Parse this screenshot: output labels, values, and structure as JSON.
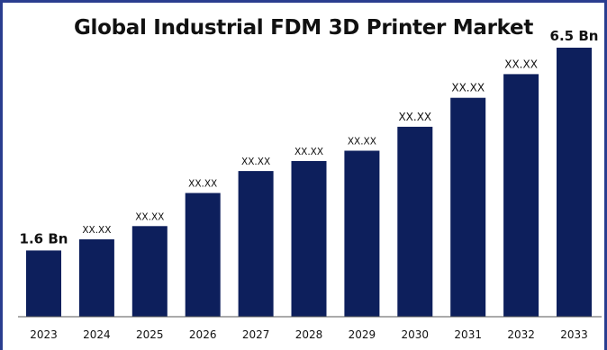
{
  "chart_data": {
    "type": "bar",
    "title": "Global Industrial FDM 3D Printer Market",
    "categories": [
      "2023",
      "2024",
      "2025",
      "2026",
      "2027",
      "2028",
      "2029",
      "2030",
      "2031",
      "2032",
      "2033"
    ],
    "values": [
      1.6,
      1.87,
      2.19,
      2.99,
      3.52,
      3.76,
      4.01,
      4.59,
      5.29,
      5.86,
      6.5
    ],
    "data_labels": [
      "1.6 Bn",
      "XX.XX",
      "XX.XX",
      "XX.XX",
      "XX.XX",
      "XX.XX",
      "XX.XX",
      "XX.XX",
      "XX.XX",
      "XX.XX",
      "6.5 Bn"
    ],
    "ylim": [
      0,
      7.0
    ],
    "grid": false,
    "legend": "none",
    "bar_color": "#0d1f5c"
  }
}
